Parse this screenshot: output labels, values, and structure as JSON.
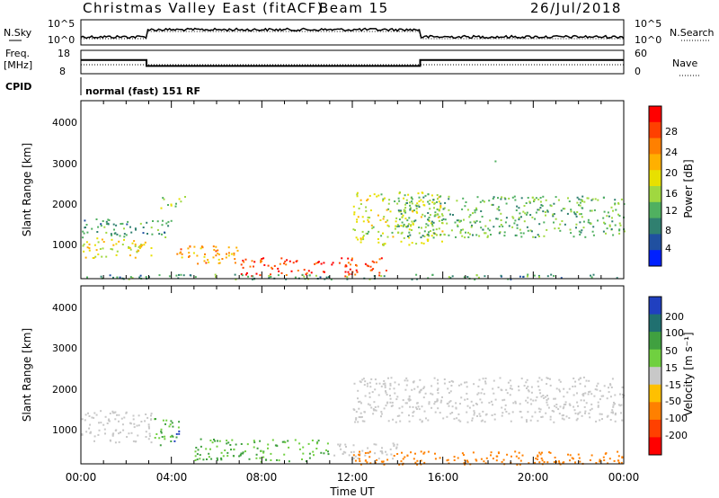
{
  "header": {
    "title": "Christmas Valley East (fitACF)",
    "beam": "Beam 15",
    "date": "26/Jul/2018"
  },
  "sky_panel": {
    "left_label": "N.Sky",
    "left_ticks": [
      "10^5",
      "10^0"
    ],
    "right_label": "N.Search",
    "right_ticks": [
      "10^5",
      "10^0"
    ]
  },
  "freq_panel": {
    "left_label_1": "Freq.",
    "left_label_2": "[MHz]",
    "left_ticks": [
      "18",
      "8"
    ],
    "right_label": "Nave",
    "right_ticks": [
      "60",
      "0"
    ]
  },
  "cpid": {
    "label": "CPID",
    "text": "normal (fast) 151 RF"
  },
  "power_panel": {
    "ylabel": "Slant Range [km]",
    "yticks": [
      "4000",
      "3000",
      "2000",
      "1000"
    ],
    "colorbar_label": "Power [dB]",
    "colorbar_ticks": [
      "28",
      "24",
      "20",
      "16",
      "12",
      "8",
      "4"
    ],
    "colors": [
      "#ff0000",
      "#ff4000",
      "#ff8000",
      "#ffb000",
      "#e8e000",
      "#a0d840",
      "#50b060",
      "#308070",
      "#2050a0",
      "#0020ff"
    ]
  },
  "velocity_panel": {
    "ylabel": "Slant Range [km]",
    "yticks": [
      "4000",
      "3000",
      "2000",
      "1000"
    ],
    "colorbar_label": "Velocity [m s⁻¹]",
    "colorbar_ticks": [
      "200",
      "100",
      "50",
      "15",
      "-15",
      "-50",
      "-100",
      "-200"
    ],
    "colors": [
      "#2040c0",
      "#207070",
      "#40a040",
      "#70d040",
      "#c8c8c8",
      "#ffc000",
      "#ff8000",
      "#ff4000",
      "#ff0000"
    ]
  },
  "x_axis": {
    "ticks": [
      "00:00",
      "04:00",
      "08:00",
      "12:00",
      "16:00",
      "20:00",
      "00:00"
    ],
    "label": "Time UT"
  },
  "chart_data": {
    "type": "heatmap",
    "x_range_hours": [
      0,
      24
    ],
    "y_range_km": [
      180,
      4500
    ],
    "frequency_steps_MHz": [
      {
        "from_h": 0,
        "to_h": 2.9,
        "value": 14
      },
      {
        "from_h": 2.9,
        "to_h": 15.0,
        "value": 11
      },
      {
        "from_h": 15.0,
        "to_h": 24,
        "value": 14
      }
    ],
    "power_regions_dB": [
      {
        "t0": 0,
        "t1": 3.2,
        "r0": 700,
        "r1": 1200,
        "value": 16
      },
      {
        "t0": 0,
        "t1": 4.0,
        "r0": 1200,
        "r1": 1650,
        "value": 8
      },
      {
        "t0": 3.5,
        "t1": 4.6,
        "r0": 1900,
        "r1": 2200,
        "value": 12
      },
      {
        "t0": 4.2,
        "t1": 7.0,
        "r0": 550,
        "r1": 1000,
        "value": 20
      },
      {
        "t0": 7.0,
        "t1": 10.8,
        "r0": 250,
        "r1": 700,
        "value": 26
      },
      {
        "t0": 11.0,
        "t1": 13.5,
        "r0": 250,
        "r1": 700,
        "value": 26
      },
      {
        "t0": 12.0,
        "t1": 16.0,
        "r0": 1000,
        "r1": 2300,
        "value": 14
      },
      {
        "t0": 14.0,
        "t1": 24.0,
        "r0": 1200,
        "r1": 2200,
        "value": 10
      },
      {
        "t0": 18.0,
        "t1": 18.4,
        "r0": 2850,
        "r1": 3050,
        "value": 12
      },
      {
        "t0": 0,
        "t1": 24,
        "r0": 180,
        "r1": 300,
        "value": 8
      }
    ],
    "velocity_regions_ms": [
      {
        "t0": 0,
        "t1": 3.2,
        "r0": 700,
        "r1": 1500,
        "value": 0
      },
      {
        "t0": 3.2,
        "t1": 4.3,
        "r0": 650,
        "r1": 1300,
        "value": 50
      },
      {
        "t0": 4.0,
        "t1": 4.6,
        "r0": 700,
        "r1": 1000,
        "value": 250
      },
      {
        "t0": 5.0,
        "t1": 11.0,
        "r0": 250,
        "r1": 800,
        "value": 50
      },
      {
        "t0": 11.0,
        "t1": 14.0,
        "r0": 300,
        "r1": 700,
        "value": 0
      },
      {
        "t0": 12.0,
        "t1": 24.0,
        "r0": 1200,
        "r1": 2300,
        "value": 0
      },
      {
        "t0": 12.0,
        "t1": 24.0,
        "r0": 180,
        "r1": 500,
        "value": -60
      }
    ]
  }
}
